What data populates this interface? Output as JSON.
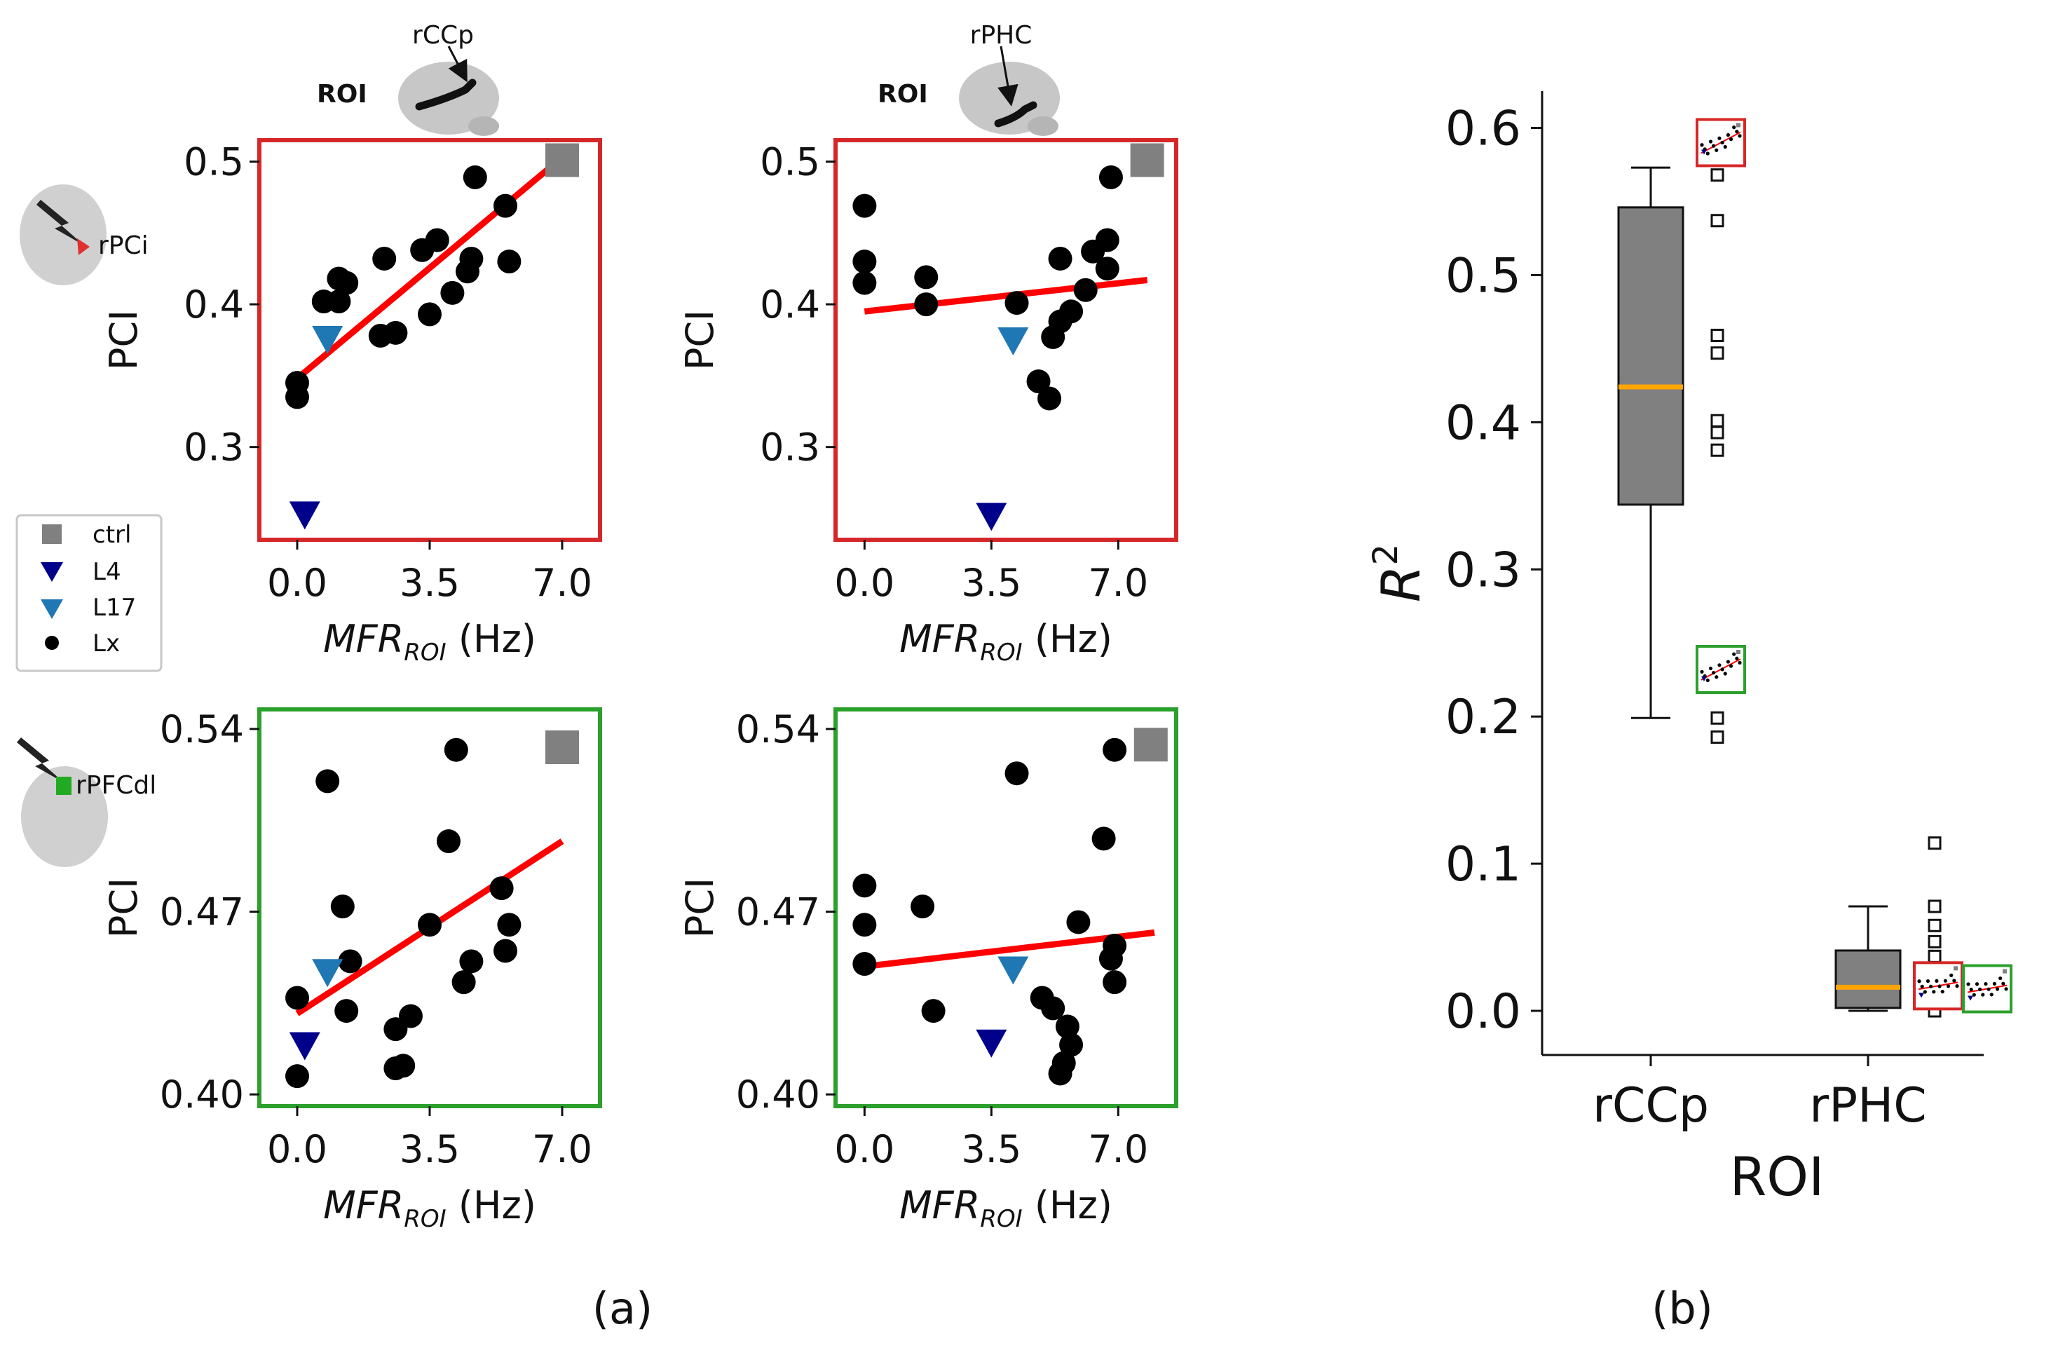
{
  "caption": {
    "a": "(a)",
    "b": "(b)"
  },
  "header": {
    "roi_word": "ROI",
    "col1_region": "rCCp",
    "col2_region": "rPHC",
    "row1_stim": "rPCi",
    "row2_stim": "rPFCdl"
  },
  "legend": [
    {
      "label": "ctrl",
      "marker": "square",
      "color": "#808080"
    },
    {
      "label": "L4",
      "marker": "triangle",
      "color": "#00008b"
    },
    {
      "label": "L17",
      "marker": "triangle",
      "color": "#1f77b4"
    },
    {
      "label": "Lx",
      "marker": "circle",
      "color": "#000000"
    }
  ],
  "colors": {
    "red_frame": "#d62728",
    "green_frame": "#2ca02c",
    "fit": "#ff0000",
    "box": "#808080",
    "median": "#ffa500"
  },
  "chart_data": [
    {
      "id": "a11",
      "type": "scatter",
      "frame": "red",
      "xlabel": "MFR",
      "xlabel_sub": "ROI",
      "xlabel_unit": " (Hz)",
      "ylabel": "PCI",
      "xlim": [
        -1.0,
        8.0
      ],
      "ylim": [
        0.235,
        0.515
      ],
      "xticks": [
        0.0,
        3.5,
        7.0
      ],
      "xtick_labels": [
        "0.0",
        "3.5",
        "7.0"
      ],
      "yticks": [
        0.3,
        0.4,
        0.5
      ],
      "ytick_labels": [
        "0.3",
        "0.4",
        "0.5"
      ],
      "lx": [
        [
          0.0,
          0.335
        ],
        [
          0.0,
          0.345
        ],
        [
          0.7,
          0.402
        ],
        [
          1.1,
          0.402
        ],
        [
          1.1,
          0.418
        ],
        [
          1.3,
          0.415
        ],
        [
          2.2,
          0.378
        ],
        [
          2.3,
          0.432
        ],
        [
          2.6,
          0.38
        ],
        [
          3.3,
          0.438
        ],
        [
          3.5,
          0.393
        ],
        [
          3.7,
          0.445
        ],
        [
          4.1,
          0.408
        ],
        [
          4.5,
          0.423
        ],
        [
          4.6,
          0.432
        ],
        [
          4.7,
          0.489
        ],
        [
          5.5,
          0.469
        ],
        [
          5.6,
          0.43
        ]
      ],
      "ctrl": [
        [
          7.0,
          0.501
        ]
      ],
      "l4": [
        [
          0.2,
          0.253
        ]
      ],
      "l17": [
        [
          0.8,
          0.376
        ]
      ],
      "fit": [
        [
          0.0,
          0.348
        ],
        [
          7.0,
          0.503
        ]
      ]
    },
    {
      "id": "a12",
      "type": "scatter",
      "frame": "red",
      "xlabel": "MFR",
      "xlabel_sub": "ROI",
      "xlabel_unit": " (Hz)",
      "ylabel": "PCI",
      "xlim": [
        -0.8,
        8.6
      ],
      "ylim": [
        0.235,
        0.515
      ],
      "xticks": [
        0.0,
        3.5,
        7.0
      ],
      "xtick_labels": [
        "0.0",
        "3.5",
        "7.0"
      ],
      "yticks": [
        0.3,
        0.4,
        0.5
      ],
      "ytick_labels": [
        "0.3",
        "0.4",
        "0.5"
      ],
      "lx": [
        [
          0.0,
          0.415
        ],
        [
          0.0,
          0.43
        ],
        [
          0.0,
          0.469
        ],
        [
          1.7,
          0.419
        ],
        [
          1.7,
          0.4
        ],
        [
          4.2,
          0.401
        ],
        [
          4.8,
          0.346
        ],
        [
          5.1,
          0.334
        ],
        [
          5.2,
          0.377
        ],
        [
          5.4,
          0.388
        ],
        [
          5.4,
          0.432
        ],
        [
          5.7,
          0.395
        ],
        [
          6.1,
          0.41
        ],
        [
          6.3,
          0.437
        ],
        [
          6.7,
          0.445
        ],
        [
          6.7,
          0.425
        ],
        [
          6.8,
          0.489
        ]
      ],
      "ctrl": [
        [
          7.8,
          0.501
        ]
      ],
      "l4": [
        [
          3.5,
          0.252
        ]
      ],
      "l17": [
        [
          4.1,
          0.375
        ]
      ],
      "fit": [
        [
          0.0,
          0.395
        ],
        [
          7.8,
          0.417
        ]
      ]
    },
    {
      "id": "a21",
      "type": "scatter",
      "frame": "green",
      "xlabel": "MFR",
      "xlabel_sub": "ROI",
      "xlabel_unit": " (Hz)",
      "ylabel": "PCI",
      "xlim": [
        -1.0,
        8.0
      ],
      "ylim": [
        0.3955,
        0.5475
      ],
      "xticks": [
        0.0,
        3.5,
        7.0
      ],
      "xtick_labels": [
        "0.0",
        "3.5",
        "7.0"
      ],
      "yticks": [
        0.4,
        0.47,
        0.54
      ],
      "ytick_labels": [
        "0.40",
        "0.47",
        "0.54"
      ],
      "lx": [
        [
          0.0,
          0.407
        ],
        [
          0.0,
          0.437
        ],
        [
          0.8,
          0.52
        ],
        [
          1.2,
          0.472
        ],
        [
          1.3,
          0.432
        ],
        [
          1.4,
          0.451
        ],
        [
          2.6,
          0.41
        ],
        [
          2.6,
          0.425
        ],
        [
          2.8,
          0.411
        ],
        [
          3.0,
          0.43
        ],
        [
          3.5,
          0.465
        ],
        [
          4.0,
          0.497
        ],
        [
          4.2,
          0.532
        ],
        [
          4.4,
          0.443
        ],
        [
          4.6,
          0.451
        ],
        [
          5.4,
          0.479
        ],
        [
          5.5,
          0.455
        ],
        [
          5.6,
          0.465
        ]
      ],
      "ctrl": [
        [
          7.0,
          0.533
        ]
      ],
      "l4": [
        [
          0.2,
          0.419
        ]
      ],
      "l17": [
        [
          0.8,
          0.447
        ]
      ],
      "fit": [
        [
          0.0,
          0.431
        ],
        [
          7.0,
          0.497
        ]
      ]
    },
    {
      "id": "a22",
      "type": "scatter",
      "frame": "green",
      "xlabel": "MFR",
      "xlabel_sub": "ROI",
      "xlabel_unit": " (Hz)",
      "ylabel": "PCI",
      "xlim": [
        -0.8,
        8.6
      ],
      "ylim": [
        0.3955,
        0.5475
      ],
      "xticks": [
        0.0,
        3.5,
        7.0
      ],
      "xtick_labels": [
        "0.0",
        "3.5",
        "7.0"
      ],
      "yticks": [
        0.4,
        0.47,
        0.54
      ],
      "ytick_labels": [
        "0.40",
        "0.47",
        "0.54"
      ],
      "lx": [
        [
          0.0,
          0.45
        ],
        [
          0.0,
          0.465
        ],
        [
          0.0,
          0.48
        ],
        [
          1.6,
          0.472
        ],
        [
          1.9,
          0.432
        ],
        [
          4.2,
          0.523
        ],
        [
          4.9,
          0.437
        ],
        [
          5.2,
          0.433
        ],
        [
          5.4,
          0.408
        ],
        [
          5.5,
          0.412
        ],
        [
          5.6,
          0.426
        ],
        [
          5.7,
          0.419
        ],
        [
          5.9,
          0.466
        ],
        [
          6.6,
          0.498
        ],
        [
          6.8,
          0.452
        ],
        [
          6.9,
          0.457
        ],
        [
          6.9,
          0.532
        ],
        [
          6.9,
          0.443
        ]
      ],
      "ctrl": [
        [
          7.9,
          0.534
        ]
      ],
      "l4": [
        [
          3.5,
          0.42
        ]
      ],
      "l17": [
        [
          4.1,
          0.448
        ]
      ],
      "fit": [
        [
          0.0,
          0.449
        ],
        [
          8.0,
          0.462
        ]
      ]
    },
    {
      "id": "b",
      "type": "box",
      "frame": "none",
      "xlabel": "ROI",
      "ylabel": "R",
      "ylabel_sup": "2",
      "ylim": [
        -0.03,
        0.625
      ],
      "yticks": [
        0.0,
        0.1,
        0.2,
        0.3,
        0.4,
        0.5,
        0.6
      ],
      "ytick_labels": [
        "0.0",
        "0.1",
        "0.2",
        "0.3",
        "0.4",
        "0.5",
        "0.6"
      ],
      "categories": [
        "rCCp",
        "rPHC"
      ],
      "boxes": [
        {
          "category": "rCCp",
          "whisker_low": 0.199,
          "q1": 0.344,
          "median": 0.424,
          "q3": 0.546,
          "whisker_high": 0.573,
          "points": [
            0.59,
            0.58,
            0.568,
            0.537,
            0.459,
            0.447,
            0.401,
            0.393,
            0.381,
            0.238,
            0.225,
            0.199,
            0.186
          ]
        },
        {
          "category": "rPHC",
          "whisker_low": 0.0,
          "q1": 0.002,
          "median": 0.016,
          "q3": 0.041,
          "whisker_high": 0.071,
          "points": [
            0.114,
            0.071,
            0.058,
            0.047,
            0.037,
            0.029,
            0.022,
            0.016,
            0.011,
            0.006,
            0.002,
            0.0
          ]
        }
      ],
      "insets": [
        {
          "frame": "red",
          "y_center": 0.59
        },
        {
          "frame": "green",
          "y_center": 0.232
        },
        {
          "frame": "red",
          "y_center": 0.017
        },
        {
          "frame": "green",
          "y_center": 0.015
        }
      ]
    }
  ]
}
